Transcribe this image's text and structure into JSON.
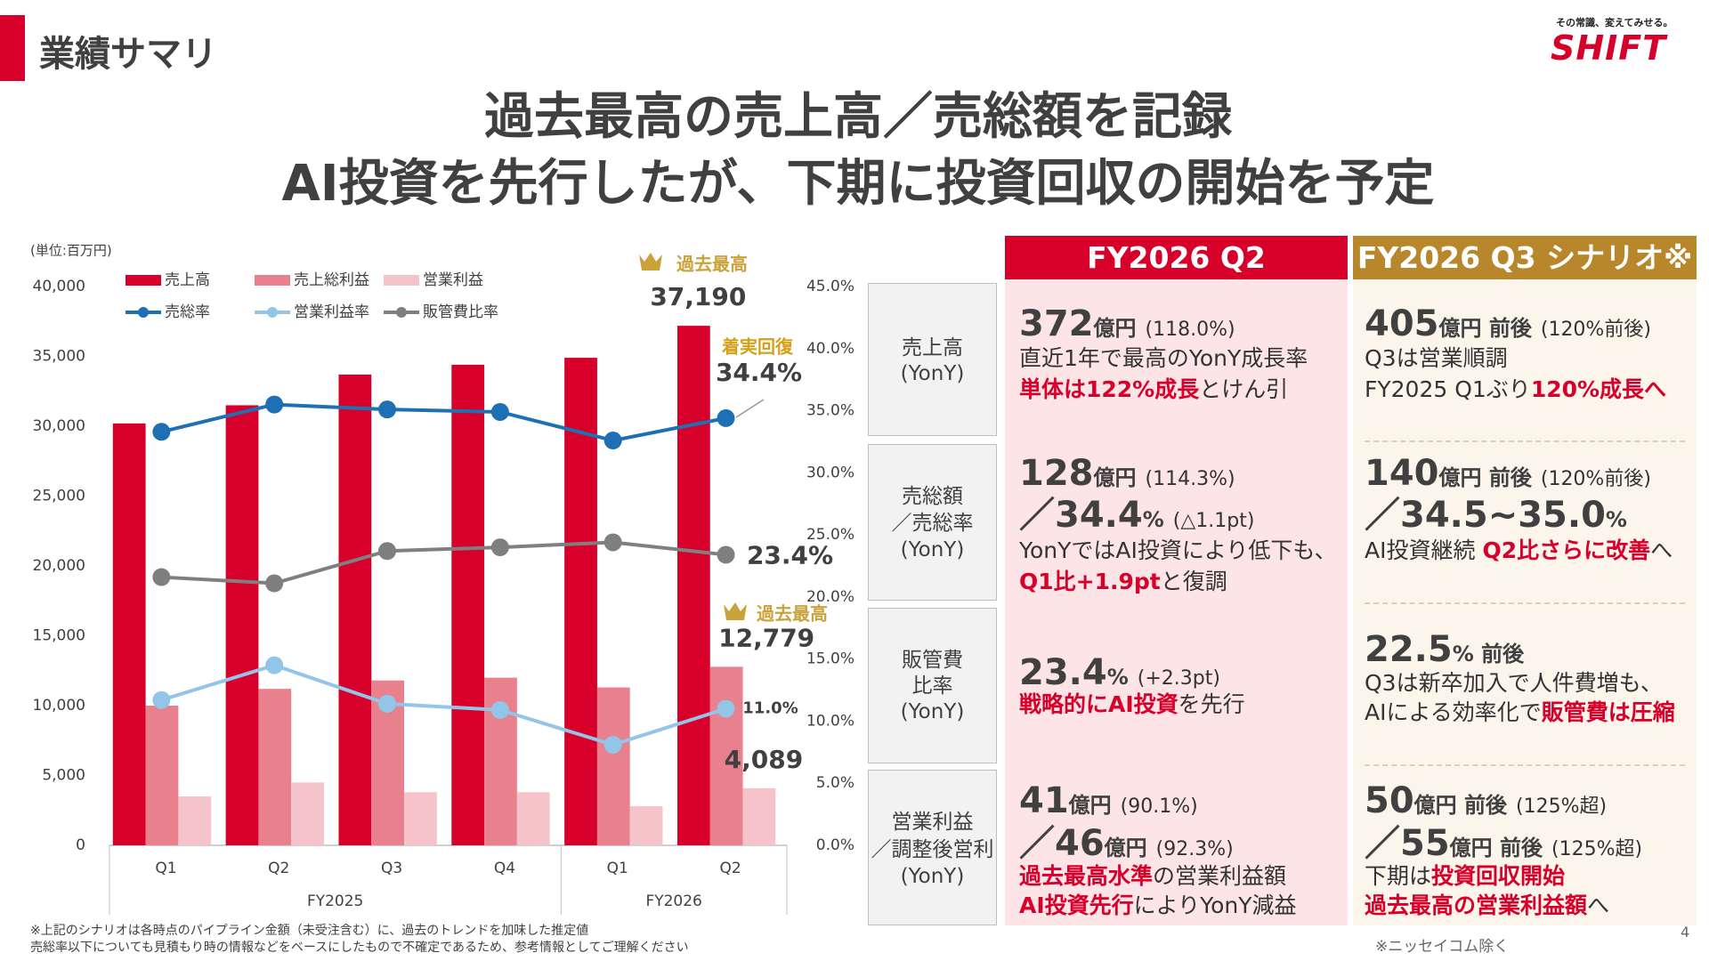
{
  "header": {
    "title": "業績サマリ",
    "tagline": "その常識、変えてみせる。",
    "logo": "SHIFT"
  },
  "headline": [
    "過去最高の売上高／売総額を記録",
    "AI投資を先行したが、下期に投資回収の開始を予定"
  ],
  "chart_data": {
    "type": "bar",
    "unit_label": "(単位:百万円)",
    "categories": [
      "Q1",
      "Q2",
      "Q3",
      "Q4",
      "Q1",
      "Q2"
    ],
    "groups": [
      "FY2025",
      "FY2026"
    ],
    "ylim": [
      0,
      40000
    ],
    "yticks": [
      0,
      {
        "value": 5000,
        "label": "5,000"
      },
      {
        "value": 10000,
        "label": "10,000"
      },
      {
        "value": 15000,
        "label": "15,000"
      },
      {
        "value": 20000,
        "label": "20,000"
      },
      {
        "value": 25000,
        "label": "25,000"
      },
      {
        "value": 30000,
        "label": "30,000"
      },
      {
        "value": 35000,
        "label": "35,000"
      },
      {
        "value": 40000,
        "label": "40,000"
      }
    ],
    "y2lim": [
      0,
      45
    ],
    "y2ticks": [
      {
        "value": 0,
        "label": "0.0%"
      },
      {
        "value": 5,
        "label": "5.0%"
      },
      {
        "value": 10,
        "label": "10.0%"
      },
      {
        "value": 15,
        "label": "15.0%"
      },
      {
        "value": 20,
        "label": "20.0%"
      },
      {
        "value": 25,
        "label": "25.0%"
      },
      {
        "value": 30,
        "label": "30.0%"
      },
      {
        "value": 35,
        "label": "35.0%"
      },
      {
        "value": 40,
        "label": "40.0%"
      },
      {
        "value": 45,
        "label": "45.0%"
      }
    ],
    "legend": "top-left",
    "grid": false,
    "series": [
      {
        "name": "売上高",
        "color": "#d7002a",
        "values": [
          30200,
          31500,
          33700,
          34400,
          34900,
          37190
        ],
        "value_labels": [
          null,
          null,
          null,
          null,
          null,
          "37,190"
        ]
      },
      {
        "name": "売上総利益",
        "color": "#e8808d",
        "values": [
          10000,
          11200,
          11800,
          12000,
          11300,
          12779
        ],
        "value_labels": [
          null,
          null,
          null,
          null,
          null,
          "12,779"
        ]
      },
      {
        "name": "営業利益",
        "color": "#f5c4cb",
        "values": [
          3500,
          4500,
          3800,
          3800,
          2800,
          4089
        ],
        "value_labels": [
          null,
          null,
          null,
          null,
          null,
          "4,089"
        ]
      },
      {
        "name": "売総率",
        "type": "line",
        "axis": "y2",
        "color": "#1f6fb5",
        "values": [
          33.3,
          35.5,
          35.1,
          34.9,
          32.6,
          34.4
        ],
        "value_labels": [
          null,
          null,
          null,
          null,
          null,
          "34.4%"
        ]
      },
      {
        "name": "営業利益率",
        "type": "line",
        "axis": "y2",
        "color": "#92c5e8",
        "values": [
          11.7,
          14.5,
          11.4,
          10.9,
          8.1,
          11.0
        ],
        "value_labels": [
          null,
          null,
          null,
          null,
          null,
          "11.0%"
        ]
      },
      {
        "name": "販管費比率",
        "type": "line",
        "axis": "y2",
        "color": "#7f7f7f",
        "values": [
          21.6,
          21.1,
          23.7,
          24.0,
          24.4,
          23.4
        ],
        "value_labels": [
          null,
          null,
          null,
          null,
          null,
          "23.4%"
        ]
      }
    ],
    "annotations": [
      "過去最高",
      "着実回復",
      "過去最高"
    ]
  },
  "table": {
    "header_q2": "FY2026 Q2",
    "header_q3": "FY2026 Q3 シナリオ※",
    "rows": [
      {
        "label": [
          "売上高",
          "(YonY)"
        ],
        "q2": [
          [
            "372",
            "億円",
            "(118.0%)"
          ],
          [
            "直近1年で最高のYonY成長率"
          ],
          [
            "単体は122%成長",
            "とけん引"
          ]
        ],
        "q3": [
          [
            "405",
            "億円 前後",
            "(120%前後)"
          ],
          [
            "Q3は営業順調"
          ],
          [
            "FY2025 Q1ぶり",
            "120%成長へ"
          ]
        ]
      },
      {
        "label": [
          "売総額",
          "／売総率",
          "(YonY)"
        ],
        "q2": [
          [
            "128",
            "億円",
            "(114.3%)"
          ],
          [
            "／34.4",
            "%",
            "(△1.1pt)"
          ],
          [
            "YonYではAI投資により低下も、"
          ],
          [
            "Q1比+1.9pt",
            "と復調"
          ]
        ],
        "q3": [
          [
            "140",
            "億円 前後",
            "(120%前後)"
          ],
          [
            "／34.5~35.0",
            "%"
          ],
          [
            "AI投資継続",
            "Q2比さらに改善",
            "へ"
          ]
        ]
      },
      {
        "label": [
          "販管費",
          "比率",
          "(YonY)"
        ],
        "q2": [
          [
            "23.4",
            "%",
            "(+2.3pt)"
          ],
          [
            "戦略的にAI投資",
            "を先行"
          ]
        ],
        "q3": [
          [
            "22.5",
            "% 前後"
          ],
          [
            "Q3は新卒加入で人件費増も、"
          ],
          [
            "AIによる効率化で",
            "販管費は圧縮"
          ]
        ]
      },
      {
        "label": [
          "営業利益",
          "／調整後営利",
          "(YonY)"
        ],
        "q2": [
          [
            "41",
            "億円",
            "(90.1%)"
          ],
          [
            "／46",
            "億円",
            "(92.3%)"
          ],
          [
            "過去最高水準",
            "の営業利益額"
          ],
          [
            "AI投資先行",
            "によりYonY減益"
          ]
        ],
        "q3": [
          [
            "50",
            "億円 前後",
            "(125%超)"
          ],
          [
            "／55",
            "億円 前後",
            "(125%超)"
          ],
          [
            "下期は",
            "投資回収開始"
          ],
          [
            "過去最高の営業利益額",
            "へ"
          ]
        ]
      }
    ],
    "note": "※ニッセイコム除く"
  },
  "footnotes": [
    "※上記のシナリオは各時点のパイプライン金額（未受注含む）に、過去のトレンドを加味した推定値",
    "売総率以下についても見積もり時の情報などをベースにしたもので不確定であるため、参考情報としてご理解ください"
  ],
  "page_number": "4"
}
